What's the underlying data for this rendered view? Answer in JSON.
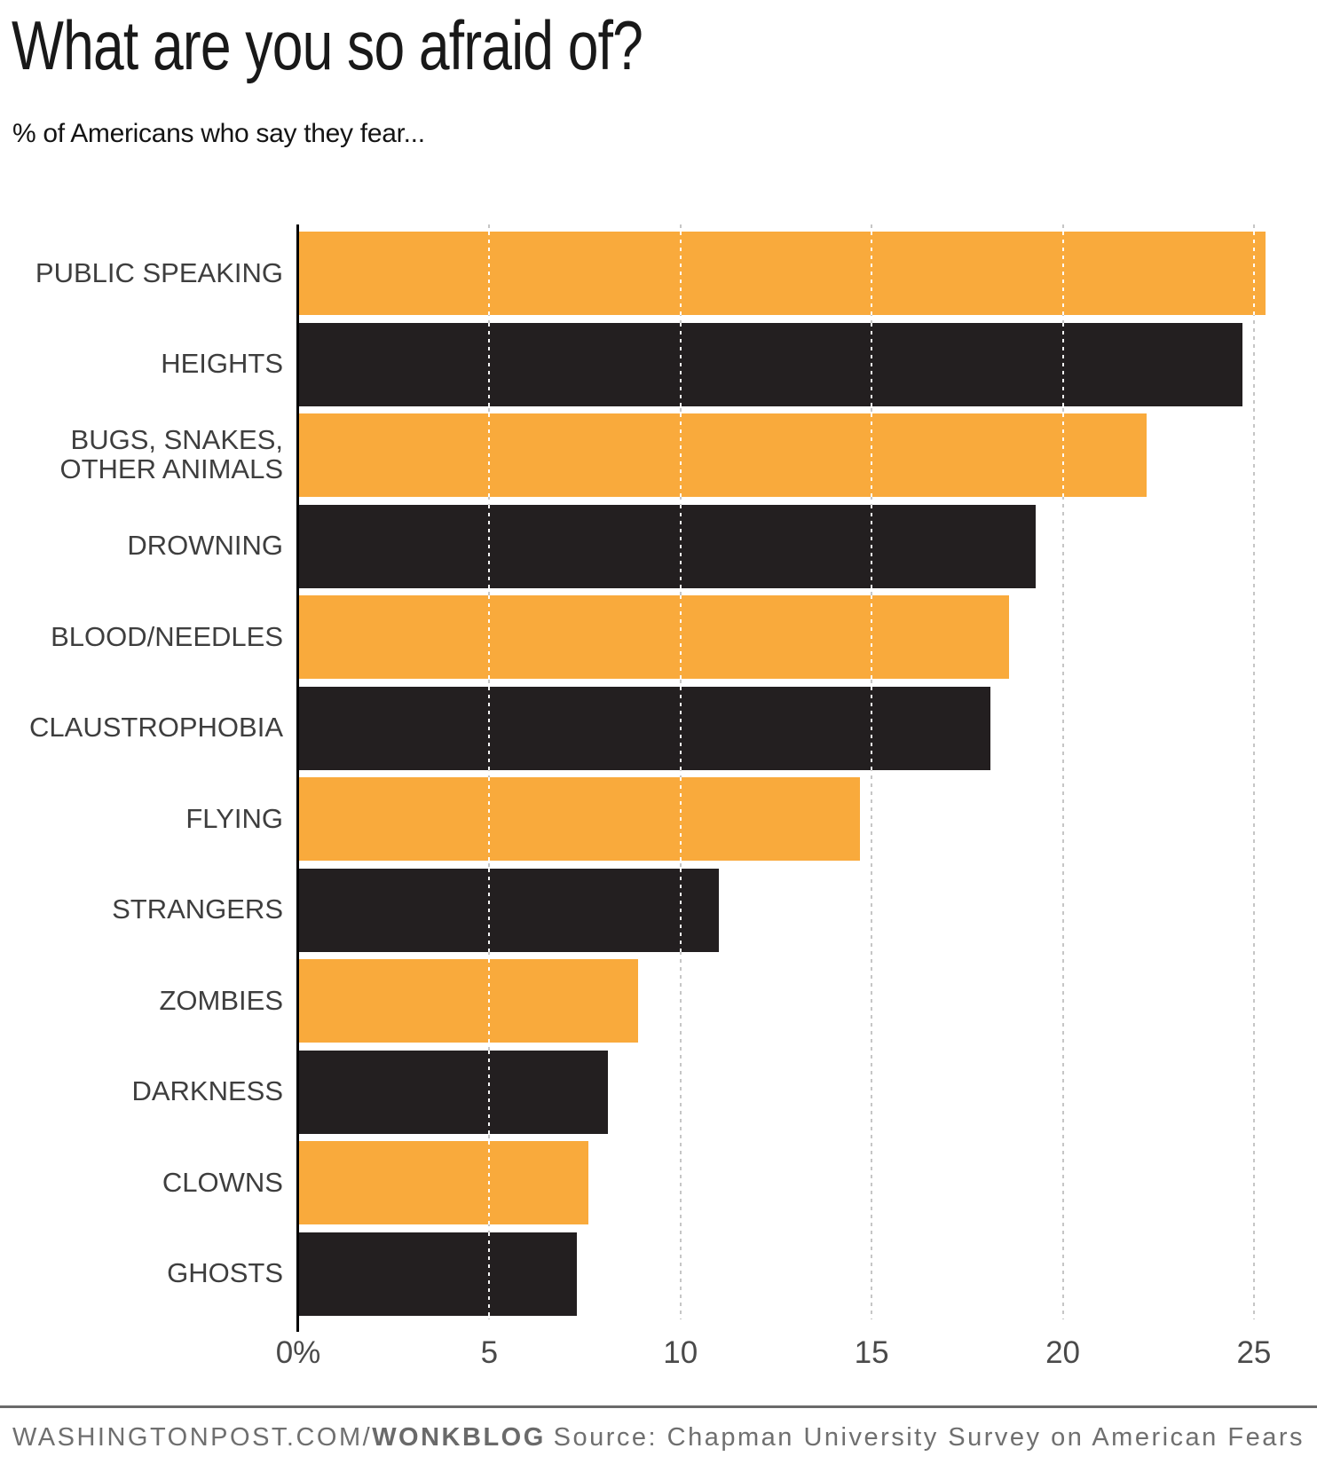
{
  "header": {
    "title": "What are you so afraid of?",
    "subtitle": "% of Americans who say they fear..."
  },
  "chart_data": {
    "type": "bar",
    "orientation": "horizontal",
    "title": "What are you so afraid of?",
    "subtitle": "% of Americans who say they fear...",
    "categories": [
      "PUBLIC SPEAKING",
      "HEIGHTS",
      "BUGS, SNAKES, OTHER ANIMALS",
      "DROWNING",
      "BLOOD/NEEDLES",
      "CLAUSTROPHOBIA",
      "FLYING",
      "STRANGERS",
      "ZOMBIES",
      "DARKNESS",
      "CLOWNS",
      "GHOSTS"
    ],
    "label_lines": [
      [
        "PUBLIC SPEAKING"
      ],
      [
        "HEIGHTS"
      ],
      [
        "BUGS, SNAKES,",
        "OTHER ANIMALS"
      ],
      [
        "DROWNING"
      ],
      [
        "BLOOD/NEEDLES"
      ],
      [
        "CLAUSTROPHOBIA"
      ],
      [
        "FLYING"
      ],
      [
        "STRANGERS"
      ],
      [
        "ZOMBIES"
      ],
      [
        "DARKNESS"
      ],
      [
        "CLOWNS"
      ],
      [
        "GHOSTS"
      ]
    ],
    "values": [
      25.3,
      24.7,
      22.2,
      19.3,
      18.6,
      18.1,
      14.7,
      11.0,
      8.9,
      8.1,
      7.6,
      7.3
    ],
    "unit": "percent",
    "xlabel": "",
    "ylabel": "",
    "xlim": [
      0,
      26
    ],
    "xticks": [
      0,
      5,
      10,
      15,
      20,
      25
    ],
    "xtick_labels": [
      "0%",
      "5",
      "10",
      "15",
      "20",
      "25"
    ],
    "grid": "vertical-dotted",
    "legend": "none",
    "bar_color_odd_rows": "#F9AA3C",
    "bar_color_even_rows": "#231F20"
  },
  "colors": {
    "orange": "#F9AA3C",
    "near_black": "#231F20",
    "gridline": "#c6c6c6",
    "axis": "#000000",
    "label_text": "#3e3e3e",
    "tick_text": "#4a4a4a",
    "footer_text": "#6f6f6f",
    "footer_rule": "#6a6a6a"
  },
  "footer": {
    "site": "WASHINGTONPOST.COM/",
    "site_bold": "WONKBLOG",
    "source": "Source: Chapman University Survey on American Fears"
  }
}
